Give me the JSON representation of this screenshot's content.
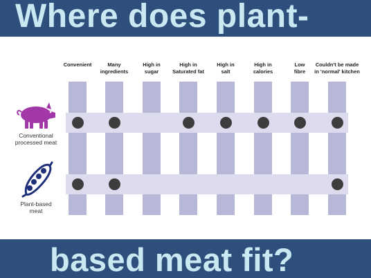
{
  "title": {
    "line1": "Where does plant-",
    "line2": "based meat fit?"
  },
  "columns": [
    {
      "label": "Convenient"
    },
    {
      "label": "Many\ningredients"
    },
    {
      "label": "High in\nsugar"
    },
    {
      "label": "High in\nSaturated fat"
    },
    {
      "label": "High in\nsalt"
    },
    {
      "label": "High in\ncalories"
    },
    {
      "label": "Low\nfibre"
    },
    {
      "label": "Couldn't be made\nin 'normal' kitchen"
    }
  ],
  "rows": [
    {
      "label": "Conventional\nprocessed meat",
      "icon": "pig-icon",
      "dots": [
        true,
        true,
        false,
        true,
        true,
        true,
        true,
        true
      ]
    },
    {
      "label": "Plant-based\nmeat",
      "icon": "pea-pod-icon",
      "dots": [
        true,
        true,
        false,
        false,
        false,
        false,
        false,
        true
      ]
    }
  ],
  "colors": {
    "banner": "#2e4f7c",
    "title": "#c9e8f2",
    "column": "#b7b7d8",
    "row_band": "#dcdcee",
    "dot": "#3d3d3d",
    "pig": "#a238a8",
    "pod": "#1f2f7a"
  }
}
